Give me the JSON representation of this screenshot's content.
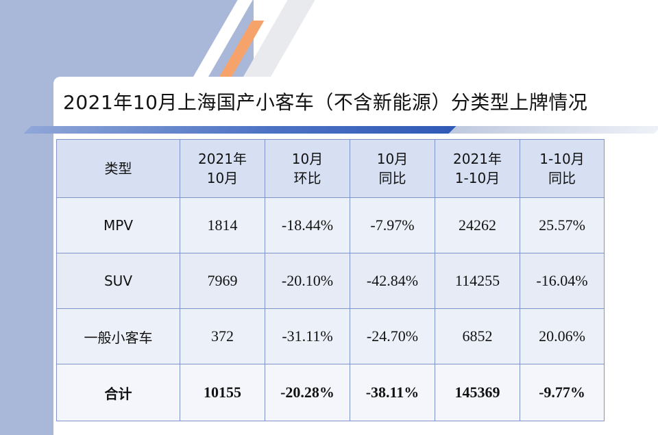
{
  "title": "2021年10月上海国产小客车（不含新能源）分类型上牌情况",
  "table": {
    "headers": [
      {
        "line1": "类型",
        "line2": ""
      },
      {
        "line1": "2021年",
        "line2": "10月"
      },
      {
        "line1": "10月",
        "line2": "环比"
      },
      {
        "line1": "10月",
        "line2": "同比"
      },
      {
        "line1": "2021年",
        "line2": "1-10月"
      },
      {
        "line1": "1-10月",
        "line2": "同比"
      }
    ],
    "rows": [
      [
        "MPV",
        "1814",
        "-18.44%",
        "-7.97%",
        "24262",
        "25.57%"
      ],
      [
        "SUV",
        "7969",
        "-20.10%",
        "-42.84%",
        "114255",
        "-16.04%"
      ],
      [
        "一般小客车",
        "372",
        "-31.11%",
        "-24.70%",
        "6852",
        "20.06%"
      ]
    ],
    "total": [
      "合计",
      "10155",
      "-20.28%",
      "-38.11%",
      "145369",
      "-9.77%"
    ]
  }
}
